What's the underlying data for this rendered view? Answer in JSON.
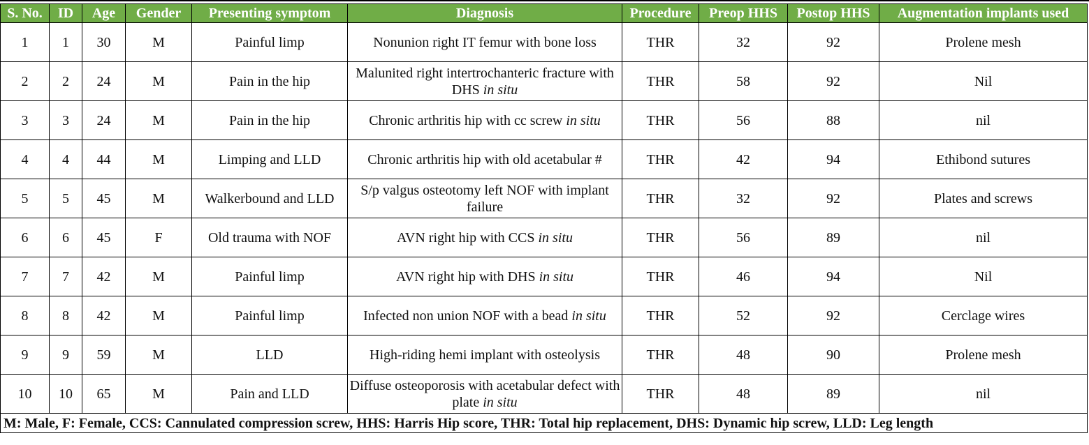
{
  "colors": {
    "header_bg": "#70ad47",
    "header_text": "#ffffff"
  },
  "columns": [
    "S. No.",
    "ID",
    "Age",
    "Gender",
    "Presenting symptom",
    "Diagnosis",
    "Procedure",
    "Preop HHS",
    "Postop HHS",
    "Augmentation implants used"
  ],
  "rows": [
    {
      "sno": "1",
      "id": "1",
      "age": "30",
      "gender": "M",
      "symptom": "Painful limp",
      "diagnosis": "Nonunion right IT femur with bone loss",
      "diagnosis_italic": "",
      "procedure": "THR",
      "preop": "32",
      "postop": "92",
      "implants": "Prolene mesh"
    },
    {
      "sno": "2",
      "id": "2",
      "age": "24",
      "gender": "M",
      "symptom": "Pain in the hip",
      "diagnosis": "Malunited right intertrochanteric fracture with DHS ",
      "diagnosis_italic": "in situ",
      "procedure": "THR",
      "preop": "58",
      "postop": "92",
      "implants": "Nil"
    },
    {
      "sno": "3",
      "id": "3",
      "age": "24",
      "gender": "M",
      "symptom": "Pain in the hip",
      "diagnosis": "Chronic arthritis hip with cc screw ",
      "diagnosis_italic": "in situ",
      "procedure": "THR",
      "preop": "56",
      "postop": "88",
      "implants": "nil"
    },
    {
      "sno": "4",
      "id": "4",
      "age": "44",
      "gender": "M",
      "symptom": "Limping and LLD",
      "diagnosis": "Chronic arthritis hip with old acetabular #",
      "diagnosis_italic": "",
      "procedure": "THR",
      "preop": "42",
      "postop": "94",
      "implants": "Ethibond sutures"
    },
    {
      "sno": "5",
      "id": "5",
      "age": "45",
      "gender": "M",
      "symptom": "Walkerbound and LLD",
      "diagnosis": "S/p valgus osteotomy left NOF with implant failure",
      "diagnosis_italic": "",
      "procedure": "THR",
      "preop": "32",
      "postop": "92",
      "implants": "Plates and screws"
    },
    {
      "sno": "6",
      "id": "6",
      "age": "45",
      "gender": "F",
      "symptom": "Old trauma with NOF",
      "diagnosis": "AVN right hip with CCS ",
      "diagnosis_italic": "in situ",
      "procedure": "THR",
      "preop": "56",
      "postop": "89",
      "implants": "nil"
    },
    {
      "sno": "7",
      "id": "7",
      "age": "42",
      "gender": "M",
      "symptom": "Painful limp",
      "diagnosis": "AVN right hip with DHS ",
      "diagnosis_italic": "in situ",
      "procedure": "THR",
      "preop": "46",
      "postop": "94",
      "implants": "Nil"
    },
    {
      "sno": "8",
      "id": "8",
      "age": "42",
      "gender": "M",
      "symptom": "Painful limp",
      "diagnosis": "Infected non union NOF with a bead ",
      "diagnosis_italic": "in situ",
      "procedure": "THR",
      "preop": "52",
      "postop": "92",
      "implants": "Cerclage wires"
    },
    {
      "sno": "9",
      "id": "9",
      "age": "59",
      "gender": "M",
      "symptom": "LLD",
      "diagnosis": "High-riding hemi implant with osteolysis",
      "diagnosis_italic": "",
      "procedure": "THR",
      "preop": "48",
      "postop": "90",
      "implants": "Prolene mesh"
    },
    {
      "sno": "10",
      "id": "10",
      "age": "65",
      "gender": "M",
      "symptom": "Pain and LLD",
      "diagnosis": "Diffuse osteoporosis with acetabular defect with plate ",
      "diagnosis_italic": "in situ",
      "procedure": "THR",
      "preop": "48",
      "postop": "89",
      "implants": "nil"
    }
  ],
  "footnote": "M: Male, F: Female, CCS: Cannulated compression screw, HHS: Harris Hip score, THR: Total hip replacement, DHS: Dynamic hip screw, LLD: Leg length"
}
